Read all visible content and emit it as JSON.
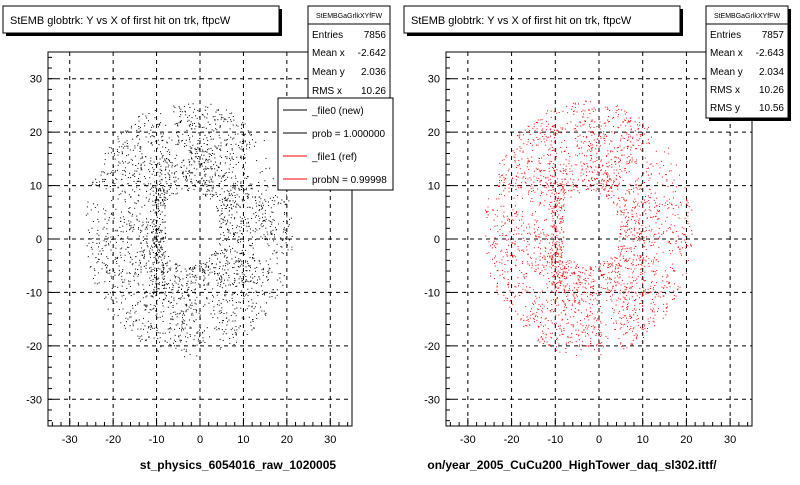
{
  "panels": [
    {
      "title": "StEMB globtrk: Y vs X of first hit on trk, ftpcW",
      "stats_header": "StEMBGaGrlkXYfFW",
      "stats": [
        {
          "label": "Entries",
          "value": "7856"
        },
        {
          "label": "Mean x",
          "value": "-2.642"
        },
        {
          "label": "Mean y",
          "value": "2.036"
        },
        {
          "label": "RMS x",
          "value": "10.26"
        }
      ],
      "legend": [
        {
          "label": "_file0 (new)",
          "color": "#000000"
        },
        {
          "label": "prob = 1.000000",
          "color": "#000000"
        },
        {
          "label": "_file1 (ref)",
          "color": "#ff0000"
        },
        {
          "label": "probN = 0.99998",
          "color": "#ff0000"
        }
      ],
      "footer": "st_physics_6054016_raw_1020005"
    },
    {
      "title": "StEMB globtrk: Y vs X of first hit on trk, ftpcW",
      "stats_header": "StEMBGaGrlkXYfFW",
      "stats": [
        {
          "label": "Entries",
          "value": "7857"
        },
        {
          "label": "Mean x",
          "value": "-2.643"
        },
        {
          "label": "Mean y",
          "value": "2.034"
        },
        {
          "label": "RMS x",
          "value": "10.26"
        },
        {
          "label": "RMS y",
          "value": "10.56"
        }
      ],
      "footer": "on/year_2005_CuCu200_HighTower_daq_sl302.ittf/"
    }
  ],
  "chart_data": [
    {
      "type": "scatter",
      "title": "StEMB globtrk: Y vs X of first hit on trk, ftpcW",
      "xlim": [
        -35,
        35
      ],
      "ylim": [
        -35,
        35
      ],
      "xticks": [
        -30,
        -20,
        -10,
        0,
        10,
        20,
        30
      ],
      "yticks": [
        -30,
        -20,
        -10,
        0,
        10,
        20,
        30
      ],
      "grid": true,
      "legend_position": "top-right",
      "series": [
        {
          "name": "_file0 (new)",
          "color": "#000000"
        }
      ],
      "entries": 7856,
      "mean_x": -2.642,
      "mean_y": 2.036,
      "rms_x": 10.26,
      "point_distribution": {
        "inner_radius": 7,
        "outer_radius": 24
      }
    },
    {
      "type": "scatter",
      "title": "StEMB globtrk: Y vs X of first hit on trk, ftpcW",
      "xlim": [
        -35,
        35
      ],
      "ylim": [
        -35,
        35
      ],
      "xticks": [
        -30,
        -20,
        -10,
        0,
        10,
        20,
        30
      ],
      "yticks": [
        -30,
        -20,
        -10,
        0,
        10,
        20,
        30
      ],
      "grid": true,
      "series": [
        {
          "name": "_file1 (ref)",
          "color": "#ff0000"
        }
      ],
      "entries": 7857,
      "mean_x": -2.643,
      "mean_y": 2.034,
      "rms_x": 10.26,
      "rms_y": 10.56,
      "point_distribution": {
        "inner_radius": 7,
        "outer_radius": 24
      }
    }
  ]
}
